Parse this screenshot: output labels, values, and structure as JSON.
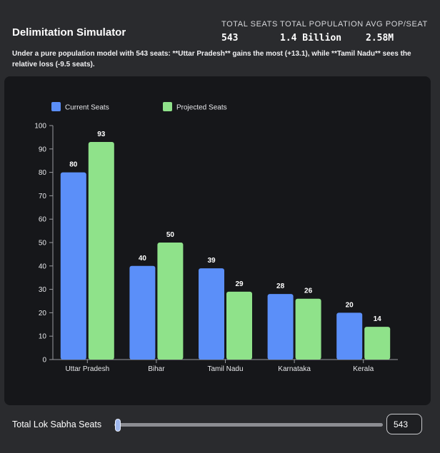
{
  "header": {
    "title": "Delimitation Simulator",
    "stats": [
      {
        "label": "TOTAL SEATS",
        "value": "543"
      },
      {
        "label": "TOTAL POPULATION",
        "value": "1.4 Billion"
      },
      {
        "label": "AVG POP/SEAT",
        "value": "2.58M"
      }
    ]
  },
  "summary": "Under a pure population model with 543 seats: **Uttar Pradesh** gains the most (+13.1), while **Tamil Nadu** sees the relative loss (-9.5 seats).",
  "colors": {
    "current": "#5b8ff9",
    "projected": "#8fe28a",
    "axis": "#9a9ba0",
    "card": "#16171a"
  },
  "chart_data": {
    "type": "bar",
    "categories": [
      "Uttar Pradesh",
      "Bihar",
      "Tamil Nadu",
      "Karnataka",
      "Kerala"
    ],
    "series": [
      {
        "name": "Current Seats",
        "values": [
          80,
          40,
          39,
          28,
          20
        ]
      },
      {
        "name": "Projected Seats",
        "values": [
          93,
          50,
          29,
          26,
          14
        ]
      }
    ],
    "yticks": [
      0,
      10,
      20,
      30,
      40,
      50,
      60,
      70,
      80,
      90,
      100
    ],
    "ylim": [
      0,
      100
    ],
    "legend": "top-left",
    "grid": false
  },
  "footer": {
    "label": "Total Lok Sabha Seats",
    "slider_value": 543,
    "input_value": "543"
  }
}
